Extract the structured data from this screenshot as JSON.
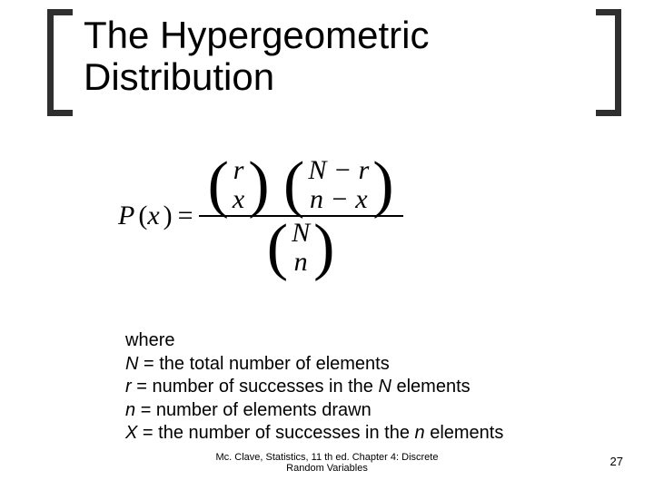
{
  "title": "The Hypergeometric Distribution",
  "formula": {
    "lhs_P": "P",
    "lhs_paren_open": "(",
    "lhs_x": "x",
    "lhs_paren_close": ")",
    "eq": "=",
    "num_binom1_top": "r",
    "num_binom1_bot": "x",
    "num_binom2_top": "N − r",
    "num_binom2_bot": "n − x",
    "den_binom_top": "N",
    "den_binom_bot": "n"
  },
  "defs": {
    "where": "where",
    "l1": "N = the total number of elements",
    "l2a": "r",
    "l2b": "  = number of successes in the ",
    "l2c": "N",
    "l2d": " elements",
    "l3": "n = number of elements drawn",
    "l4a": "X = the number of successes in the ",
    "l4b": "n",
    "l4c": " elements"
  },
  "footer": {
    "cite_line1": "Mc. Clave, Statistics, 11 th ed. Chapter 4: Discrete",
    "cite_line2": "Random Variables",
    "page": "27"
  },
  "colors": {
    "bracket": "#2f2f2f",
    "underline": "#c0b060",
    "text": "#000000",
    "background": "#ffffff"
  }
}
